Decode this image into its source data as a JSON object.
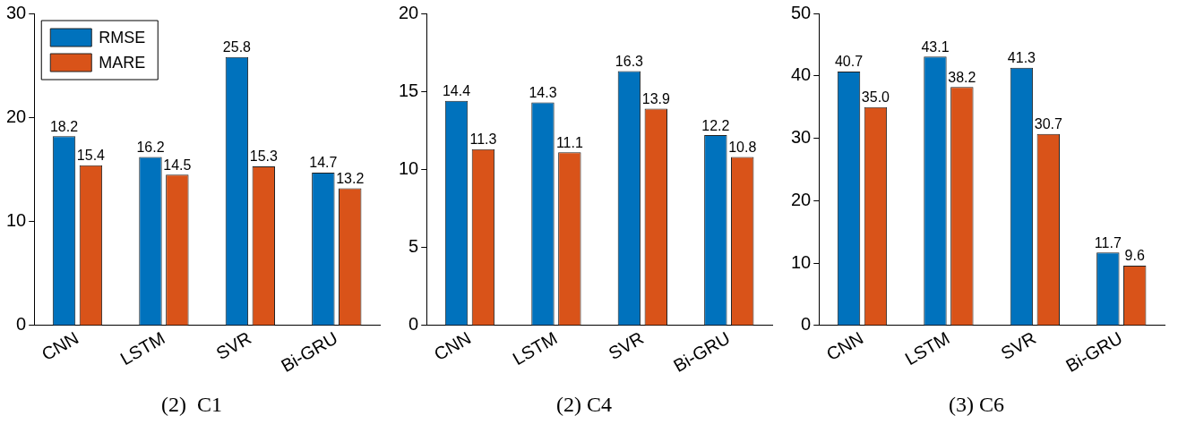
{
  "chart_data": [
    {
      "type": "bar",
      "title": "(2)  C1",
      "categories": [
        "CNN",
        "LSTM",
        "SVR",
        "Bi-GRU"
      ],
      "ylim": [
        0,
        30
      ],
      "yticks": [
        0,
        10,
        20,
        30
      ],
      "legend": "top left",
      "series": [
        {
          "name": "RMSE",
          "color": "#0072bd",
          "values": [
            18.2,
            16.2,
            25.8,
            14.7
          ],
          "value_labels": [
            "18.2",
            "16.2",
            "25.8",
            "14.7"
          ]
        },
        {
          "name": "MARE",
          "color": "#d95319",
          "values": [
            15.4,
            14.5,
            15.3,
            13.2
          ],
          "value_labels": [
            "15.4",
            "14.5",
            "15.3",
            "13.2"
          ]
        }
      ]
    },
    {
      "type": "bar",
      "title": "(2) C4",
      "categories": [
        "CNN",
        "LSTM",
        "SVR",
        "Bi-GRU"
      ],
      "ylim": [
        0,
        20
      ],
      "yticks": [
        0,
        5,
        10,
        15,
        20
      ],
      "series": [
        {
          "color": "#0072bd",
          "values": [
            14.4,
            14.3,
            16.3,
            12.2
          ],
          "value_labels": [
            "14.4",
            "14.3",
            "16.3",
            "12.2"
          ]
        },
        {
          "color": "#d95319",
          "values": [
            11.3,
            11.1,
            13.9,
            10.8
          ],
          "value_labels": [
            "11.3",
            "11.1",
            "13.9",
            "10.8"
          ]
        }
      ]
    },
    {
      "type": "bar",
      "title": "(3) C6",
      "categories": [
        "CNN",
        "LSTM",
        "SVR",
        "Bi-GRU"
      ],
      "ylim": [
        0,
        50
      ],
      "yticks": [
        0,
        10,
        20,
        30,
        40,
        50
      ],
      "series": [
        {
          "color": "#0072bd",
          "values": [
            40.7,
            43.1,
            41.3,
            11.7
          ],
          "value_labels": [
            "40.7",
            "43.1",
            "41.3",
            "11.7"
          ]
        },
        {
          "color": "#d95319",
          "values": [
            35.0,
            38.2,
            30.7,
            9.6
          ],
          "value_labels": [
            "35.0",
            "38.2",
            "30.7",
            "9.6"
          ]
        }
      ]
    }
  ]
}
